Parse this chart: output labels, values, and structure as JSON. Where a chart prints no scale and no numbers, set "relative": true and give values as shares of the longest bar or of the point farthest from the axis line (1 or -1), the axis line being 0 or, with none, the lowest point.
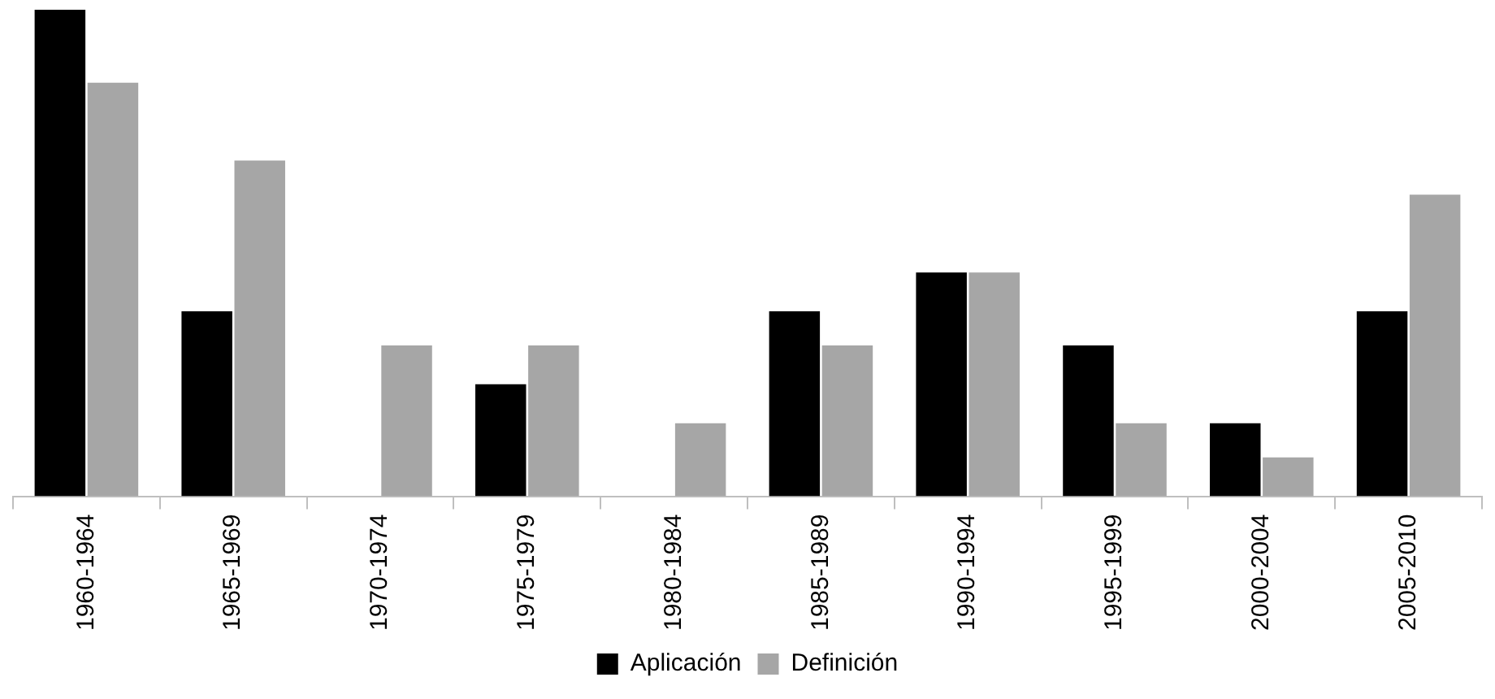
{
  "chart_data": {
    "type": "bar",
    "relative": true,
    "categories": [
      "1960-1964",
      "1965-1969",
      "1970-1974",
      "1975-1979",
      "1980-1984",
      "1985-1989",
      "1990-1994",
      "1995-1999",
      "2000-2004",
      "2005-2010"
    ],
    "series": [
      {
        "name": "Aplicación",
        "color": "#000000",
        "values": [
          1,
          0.38,
          0,
          0.23,
          0,
          0.38,
          0.46,
          0.31,
          0.15,
          0.38
        ]
      },
      {
        "name": "Definición",
        "color": "#a6a6a6",
        "values": [
          0.85,
          0.69,
          0.31,
          0.31,
          0.15,
          0.31,
          0.46,
          0.15,
          0.08,
          0.62
        ]
      }
    ],
    "grid": false,
    "legend": "bottom"
  }
}
